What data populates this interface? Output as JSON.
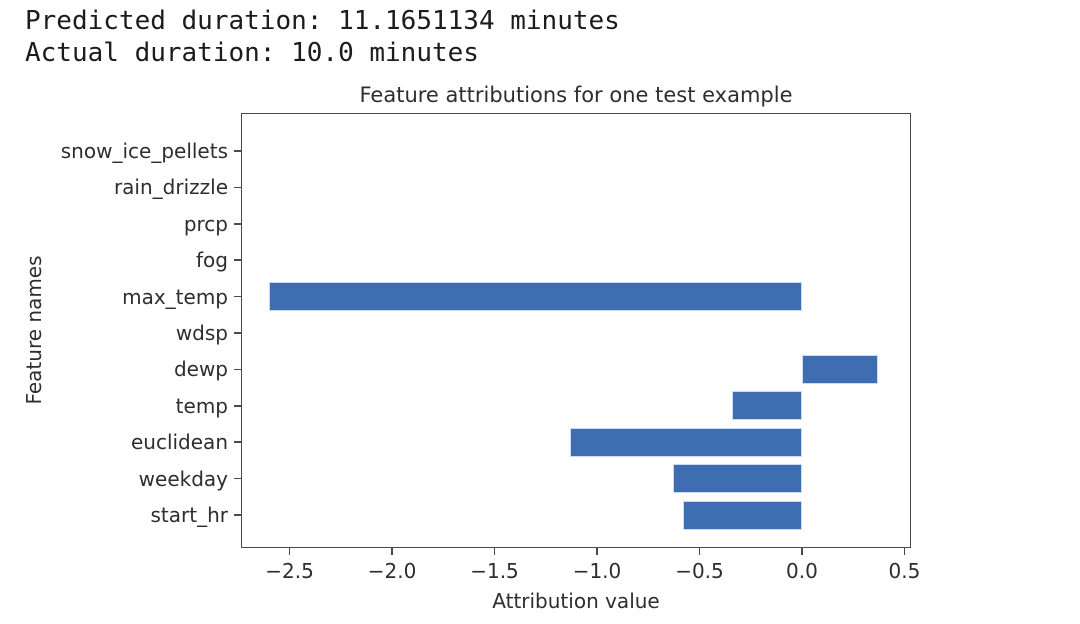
{
  "header": {
    "line1": "Predicted duration: 11.1651134 minutes",
    "line2": "Actual duration: 10.0 minutes"
  },
  "chart_data": {
    "type": "bar",
    "orientation": "horizontal",
    "title": "Feature attributions for one test example",
    "xlabel": "Attribution value",
    "ylabel": "Feature names",
    "categories": [
      "snow_ice_pellets",
      "rain_drizzle",
      "prcp",
      "fog",
      "max_temp",
      "wdsp",
      "dewp",
      "temp",
      "euclidean",
      "weekday",
      "start_hr"
    ],
    "values": [
      0,
      0,
      0,
      0,
      -2.6,
      0,
      0.37,
      -0.34,
      -1.13,
      -0.63,
      -0.58
    ],
    "categories_order": "top-to-bottom",
    "xlim": [
      -2.737,
      0.532
    ],
    "x_ticks": [
      -2.5,
      -2.0,
      -1.5,
      -1.0,
      -0.5,
      0.0,
      0.5
    ],
    "x_tick_labels": [
      "−2.5",
      "−2.0",
      "−1.5",
      "−1.0",
      "−0.5",
      "0.0",
      "0.5"
    ],
    "grid": false,
    "legend": "none",
    "bar_color": "#3e6db1",
    "bar_edge_color": "#cdd9ed"
  }
}
